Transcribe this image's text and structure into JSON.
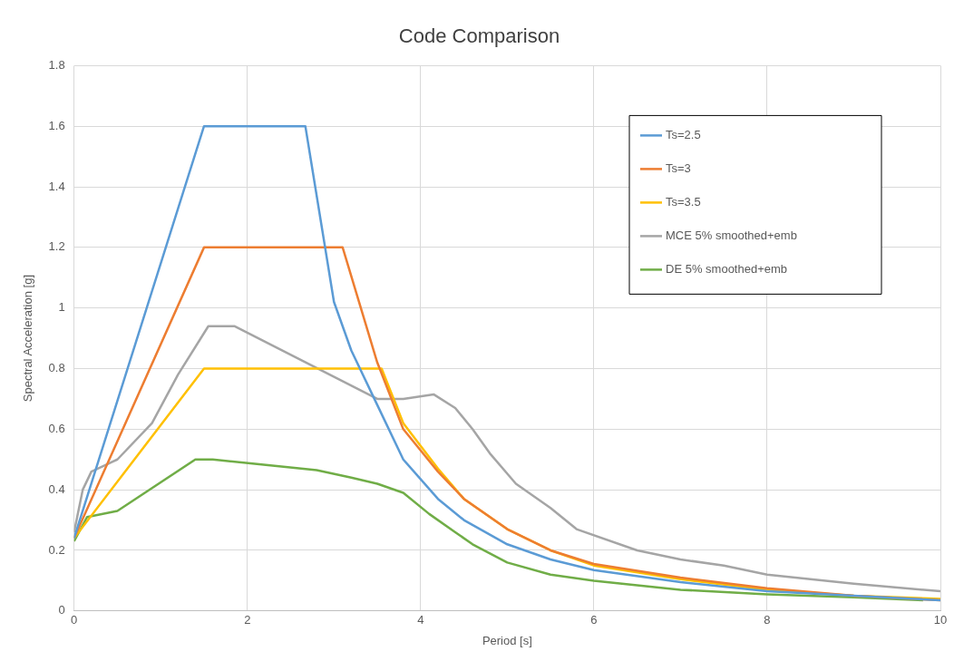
{
  "chart_data": {
    "type": "line",
    "title": "Code Comparison",
    "xlabel": "Period [s]",
    "ylabel": "Spectral Acceleration [g]",
    "xlim": [
      0,
      10
    ],
    "xticks": [
      0,
      2,
      4,
      6,
      8,
      10
    ],
    "ylim": [
      0,
      1.8
    ],
    "yticks": [
      0,
      0.2,
      0.4,
      0.6,
      0.8,
      1,
      1.2,
      1.4,
      1.6,
      1.8
    ],
    "grid": true,
    "legend": "top right",
    "marker": "none",
    "line_style": "solid",
    "series": [
      {
        "name": "Ts=2.5",
        "color": "#5b9bd5",
        "x": [
          0,
          1.5,
          2.67,
          3.0,
          3.2,
          3.5,
          3.8,
          4.2,
          4.5,
          5,
          5.5,
          6,
          7,
          8,
          9,
          10
        ],
        "values": [
          0.24,
          1.6,
          1.6,
          1.02,
          0.86,
          0.68,
          0.5,
          0.37,
          0.3,
          0.22,
          0.17,
          0.135,
          0.095,
          0.065,
          0.05,
          0.035
        ]
      },
      {
        "name": "Ts=3",
        "color": "#ed7d31",
        "x": [
          0,
          1.5,
          3.1,
          3.5,
          3.8,
          4.2,
          4.5,
          5,
          5.5,
          6,
          7,
          8,
          9,
          10
        ],
        "values": [
          0.24,
          1.2,
          1.2,
          0.82,
          0.6,
          0.46,
          0.37,
          0.27,
          0.2,
          0.155,
          0.11,
          0.075,
          0.05,
          0.035
        ]
      },
      {
        "name": "Ts=3.5",
        "color": "#ffc000",
        "x": [
          0,
          1.5,
          3.55,
          3.8,
          4.2,
          4.5,
          5,
          5.5,
          6,
          7,
          8,
          9,
          10
        ],
        "values": [
          0.24,
          0.8,
          0.8,
          0.62,
          0.47,
          0.37,
          0.27,
          0.2,
          0.15,
          0.105,
          0.07,
          0.05,
          0.04
        ]
      },
      {
        "name": "MCE 5% smoothed+emb",
        "color": "#a5a5a5",
        "x": [
          0,
          0.1,
          0.2,
          0.5,
          0.9,
          1.2,
          1.55,
          1.85,
          3.5,
          3.8,
          4.15,
          4.4,
          4.6,
          4.8,
          5.1,
          5.5,
          5.8,
          6.5,
          7,
          7.5,
          8,
          8.5,
          9,
          10
        ],
        "values": [
          0.26,
          0.4,
          0.46,
          0.5,
          0.62,
          0.78,
          0.94,
          0.94,
          0.7,
          0.7,
          0.715,
          0.67,
          0.6,
          0.52,
          0.42,
          0.34,
          0.27,
          0.2,
          0.17,
          0.15,
          0.12,
          0.105,
          0.09,
          0.065
        ]
      },
      {
        "name": "DE 5% smoothed+emb",
        "color": "#70ad47",
        "x": [
          0,
          0.15,
          0.5,
          1.4,
          1.6,
          2.8,
          3.2,
          3.5,
          3.8,
          4.1,
          4.4,
          4.6,
          5,
          5.5,
          6,
          6.5,
          7,
          8,
          9,
          9.8
        ],
        "values": [
          0.23,
          0.31,
          0.33,
          0.5,
          0.5,
          0.465,
          0.44,
          0.42,
          0.39,
          0.32,
          0.26,
          0.22,
          0.16,
          0.12,
          0.1,
          0.085,
          0.07,
          0.055,
          0.045,
          0.035
        ]
      }
    ]
  }
}
